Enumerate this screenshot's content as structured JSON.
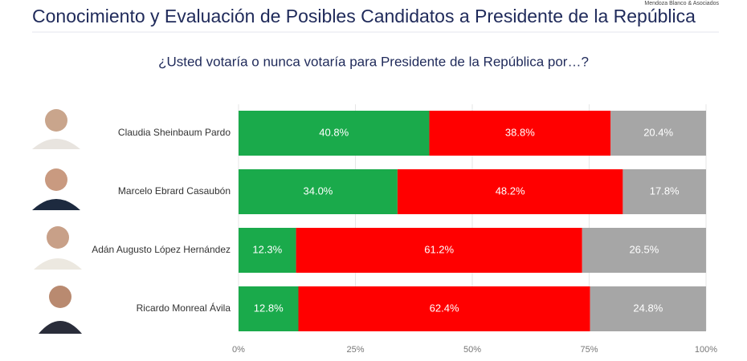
{
  "chart_data": {
    "type": "stacked-barh",
    "title": "Conocimiento y Evaluación de Posibles Candidatos a Presidente de la República",
    "subtitle": "¿Usted votaría o nunca votaría para Presidente de la República por…?",
    "source": "Mendoza Blanco & Asociados",
    "categories": [
      "Claudia Sheinbaum Pardo",
      "Marcelo Ebrard Casaubón",
      "Adán Augusto López Hernández",
      "Ricardo Monreal Ávila"
    ],
    "series": [
      {
        "color": "#1aaa4b",
        "values": [
          40.8,
          34.0,
          12.3,
          12.8
        ],
        "value_labels": [
          "40.8%",
          "34.0%",
          "12.3%",
          "12.8%"
        ]
      },
      {
        "color": "#ff0000",
        "values": [
          38.8,
          48.2,
          61.2,
          62.4
        ],
        "value_labels": [
          "38.8%",
          "48.2%",
          "61.2%",
          "62.4%"
        ]
      },
      {
        "color": "#a6a6a6",
        "values": [
          20.4,
          17.8,
          26.5,
          24.8
        ],
        "value_labels": [
          "20.4%",
          "17.8%",
          "26.5%",
          "24.8%"
        ]
      }
    ],
    "xlim": [
      0,
      100
    ],
    "xticks": [
      {
        "value": 0,
        "label": "0%"
      },
      {
        "value": 25,
        "label": "25%"
      },
      {
        "value": 50,
        "label": "50%"
      },
      {
        "value": 75,
        "label": "75%"
      },
      {
        "value": 100,
        "label": "100%"
      }
    ],
    "grid": true
  }
}
